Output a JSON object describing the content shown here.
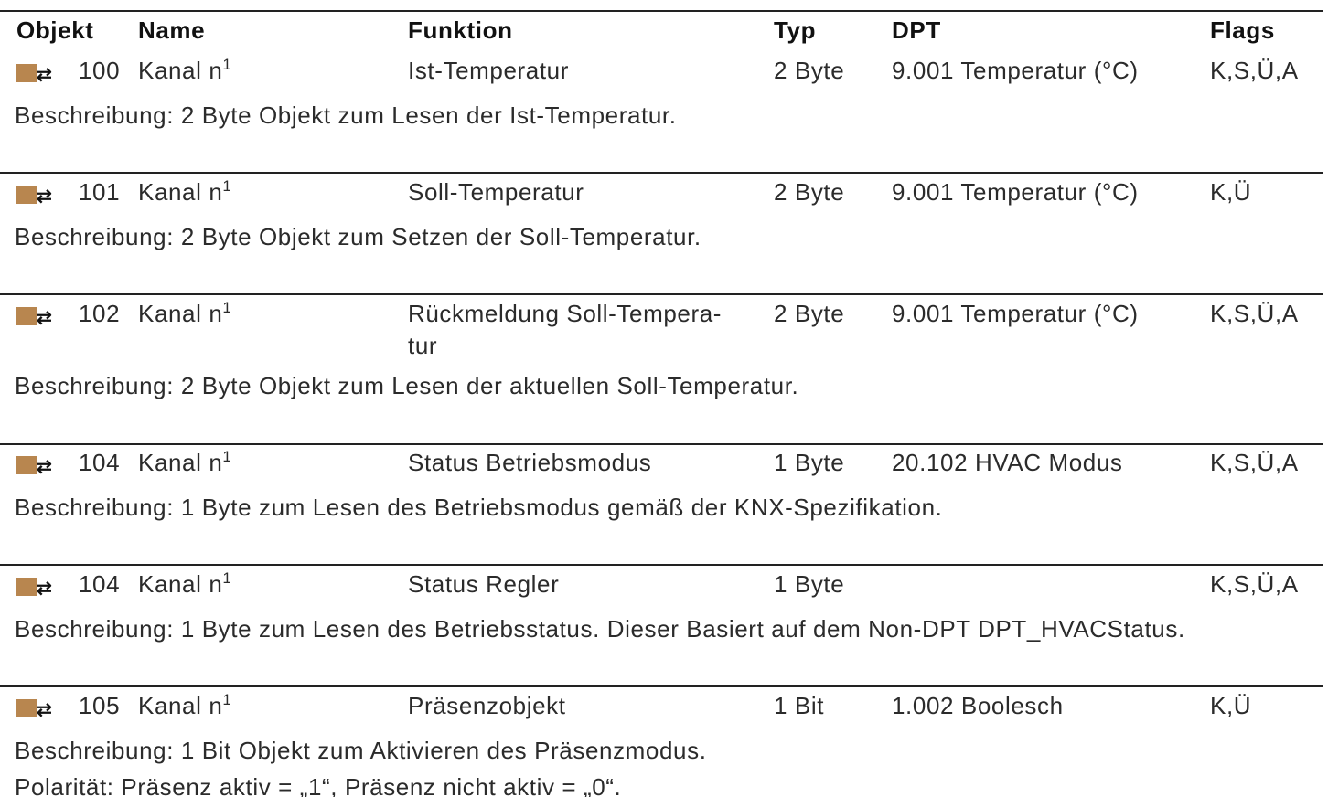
{
  "header": {
    "object": "Objekt",
    "name": "Name",
    "function": "Funktion",
    "type": "Typ",
    "dpt": "DPT",
    "flags": "Flags"
  },
  "rows": [
    {
      "number": "100",
      "name": "Kanal n",
      "footnote": "1",
      "function": [
        "Ist-Temperatur"
      ],
      "type": "2 Byte",
      "dpt": "9.001 Temperatur (°C)",
      "flags": "K,S,Ü,A",
      "description": [
        "Beschreibung: 2 Byte Objekt zum Lesen der Ist-Temperatur."
      ]
    },
    {
      "number": "101",
      "name": "Kanal n",
      "footnote": "1",
      "function": [
        "Soll-Temperatur"
      ],
      "type": "2 Byte",
      "dpt": "9.001 Temperatur (°C)",
      "flags": "K,Ü",
      "description": [
        "Beschreibung: 2 Byte Objekt zum Setzen der Soll-Temperatur."
      ]
    },
    {
      "number": "102",
      "name": "Kanal n",
      "footnote": "1",
      "function": [
        "Rückmeldung Soll-Tempera-",
        "tur"
      ],
      "type": "2 Byte",
      "dpt": "9.001 Temperatur (°C)",
      "flags": "K,S,Ü,A",
      "description": [
        "Beschreibung: 2 Byte Objekt zum Lesen der aktuellen Soll-Temperatur."
      ]
    },
    {
      "number": "104",
      "name": "Kanal n",
      "footnote": "1",
      "function": [
        "Status Betriebsmodus"
      ],
      "type": "1 Byte",
      "dpt": "20.102 HVAC Modus",
      "flags": "K,S,Ü,A",
      "description": [
        "Beschreibung: 1 Byte zum Lesen des Betriebsmodus gemäß der KNX-Spezifikation."
      ]
    },
    {
      "number": "104",
      "name": "Kanal n",
      "footnote": "1",
      "function": [
        "Status Regler"
      ],
      "type": "1 Byte",
      "flags": "K,S,Ü,A",
      "description": [
        "Beschreibung: 1 Byte zum Lesen des Betriebsstatus. Dieser Basiert auf dem Non-DPT DPT_HVACStatus."
      ]
    },
    {
      "number": "105",
      "name": "Kanal n",
      "footnote": "1",
      "function": [
        "Präsenzobjekt"
      ],
      "type": "1 Bit",
      "dpt": "1.002 Boolesch",
      "flags": "K,Ü",
      "description": [
        "Beschreibung: 1 Bit Objekt zum Aktivieren des Präsenzmodus.",
        "Polarität: Präsenz aktiv = „1“, Präsenz nicht aktiv = „0“."
      ]
    }
  ]
}
